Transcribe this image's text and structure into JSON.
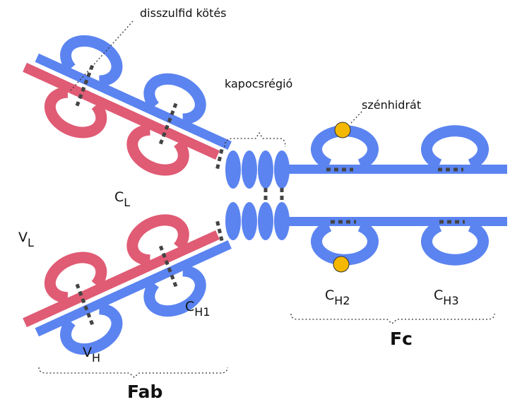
{
  "labels": {
    "disulfide": "disszulfid kötés",
    "hinge": "kapocsrégió",
    "carbohydrate": "szénhidrát",
    "cl": {
      "main": "C",
      "sub": "L"
    },
    "vl": {
      "main": "V",
      "sub": "L"
    },
    "vh": {
      "main": "V",
      "sub": "H"
    },
    "ch1": {
      "main": "C",
      "sub": "H1"
    },
    "ch2": {
      "main": "C",
      "sub": "H2"
    },
    "ch3": {
      "main": "C",
      "sub": "H3"
    },
    "fc": "Fc",
    "fab": "Fab"
  }
}
